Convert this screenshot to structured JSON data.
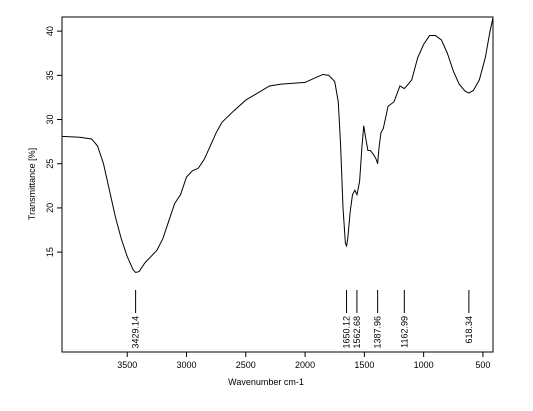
{
  "chart_data": {
    "type": "line",
    "xlabel": "Wavenumber cm-1",
    "ylabel": "Transmittance [%]",
    "xlim": [
      4050,
      415
    ],
    "ylim": [
      3.7,
      41.6
    ],
    "xticks": [
      3500,
      3000,
      2500,
      2000,
      1500,
      1000,
      500
    ],
    "yticks": [
      15,
      20,
      25,
      30,
      35,
      40
    ],
    "peaks": [
      3429.14,
      1650.12,
      1562.68,
      1387.96,
      1162.99,
      618.34
    ],
    "series": [
      {
        "color": "#000000",
        "x": [
          4050,
          3900,
          3800,
          3750,
          3700,
          3650,
          3600,
          3550,
          3500,
          3450,
          3429,
          3400,
          3350,
          3300,
          3250,
          3200,
          3150,
          3100,
          3050,
          3000,
          2950,
          2900,
          2850,
          2800,
          2750,
          2700,
          2600,
          2500,
          2400,
          2300,
          2200,
          2100,
          2000,
          1900,
          1850,
          1800,
          1750,
          1720,
          1700,
          1680,
          1660,
          1650,
          1640,
          1620,
          1600,
          1580,
          1562,
          1540,
          1520,
          1505,
          1490,
          1470,
          1450,
          1420,
          1400,
          1388,
          1375,
          1360,
          1340,
          1300,
          1250,
          1200,
          1163,
          1130,
          1100,
          1080,
          1050,
          1000,
          950,
          900,
          850,
          800,
          750,
          700,
          650,
          618,
          580,
          530,
          480,
          440,
          415
        ],
        "values": [
          28.1,
          28.0,
          27.8,
          27.0,
          25,
          22,
          19,
          16.5,
          14.5,
          13,
          12.7,
          12.8,
          13.8,
          14.5,
          15.2,
          16.5,
          18.5,
          20.5,
          21.5,
          23.5,
          24.2,
          24.5,
          25.5,
          27,
          28.5,
          29.7,
          31,
          32.2,
          33,
          33.8,
          34.0,
          34.1,
          34.2,
          34.8,
          35.1,
          35.0,
          34.3,
          32,
          27,
          20,
          16,
          15.7,
          16.5,
          19.5,
          21.5,
          22,
          21.5,
          23,
          27,
          29.3,
          28,
          26.5,
          26.5,
          26,
          25.5,
          25.0,
          27,
          28.5,
          29,
          31.5,
          32,
          33.8,
          33.5,
          34,
          34.5,
          35.5,
          37,
          38.5,
          39.5,
          39.5,
          39,
          37.5,
          35.5,
          34,
          33.2,
          33,
          33.3,
          34.5,
          37,
          40,
          41.5
        ]
      }
    ]
  }
}
